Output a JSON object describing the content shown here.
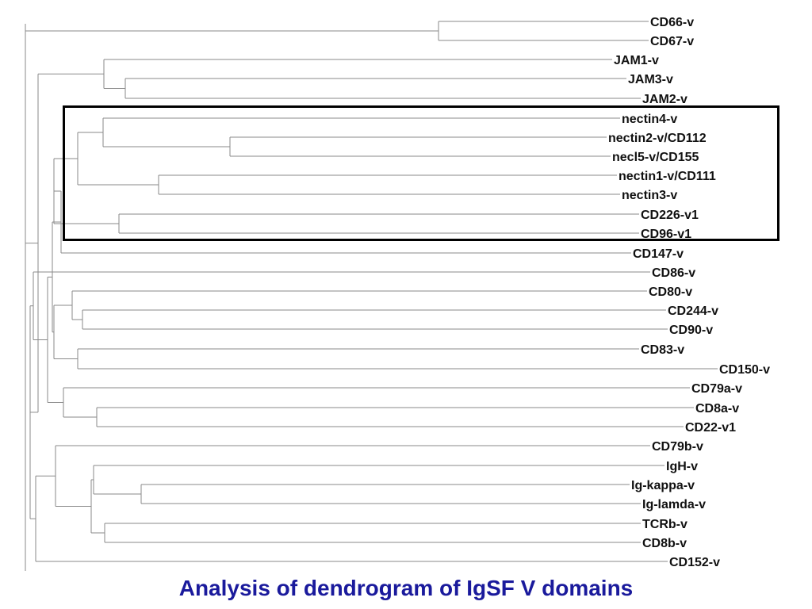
{
  "figure": {
    "caption": "Analysis of dendrogram of IgSF V domains",
    "caption_color": "#1a1a9c",
    "highlight_box_color": "#000000",
    "branch_color": "#8a8a8a"
  },
  "dendrogram": {
    "leaves": [
      "CD66-v",
      "CD67-v",
      "JAM1-v",
      "JAM3-v",
      "JAM2-v",
      "nectin4-v",
      "nectin2-v/CD112",
      "necl5-v/CD155",
      "nectin1-v/CD111",
      "nectin3-v",
      "CD226-v1",
      "CD96-v1",
      "CD147-v",
      "CD86-v",
      "CD80-v",
      "CD244-v",
      "CD90-v",
      "CD83-v",
      "CD150-v",
      "CD79a-v",
      "CD8a-v",
      "CD22-v1",
      "CD79b-v",
      "IgH-v",
      "Ig-kappa-v",
      "Ig-lamda-v",
      "TCRb-v",
      "CD8b-v",
      "CD152-v"
    ],
    "highlighted_group": [
      "nectin4-v",
      "nectin2-v/CD112",
      "necl5-v/CD155",
      "nectin1-v/CD111",
      "nectin3-v",
      "CD226-v1",
      "CD96-v1"
    ]
  }
}
